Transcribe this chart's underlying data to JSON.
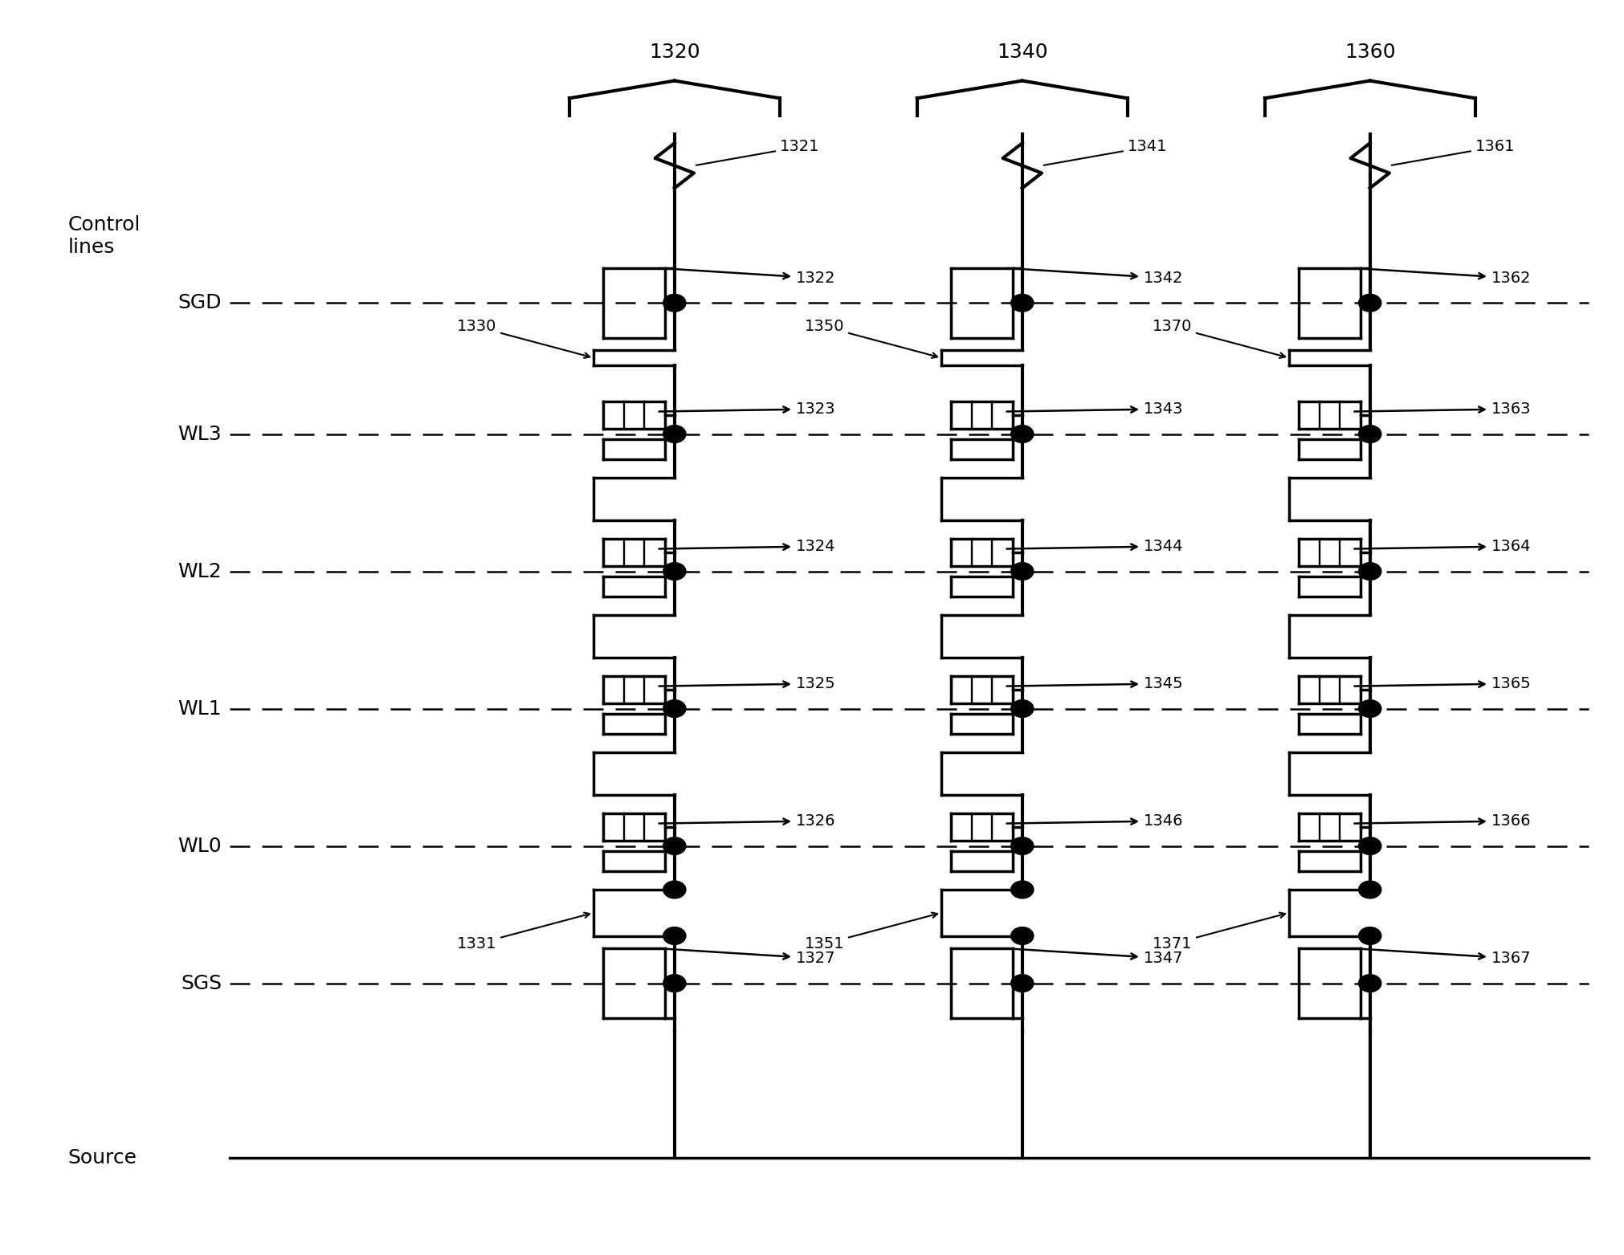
{
  "fig_width": 20.22,
  "fig_height": 15.63,
  "background_color": "#ffffff",
  "col_labels": [
    "1320",
    "1340",
    "1360"
  ],
  "col_wire_labels": [
    "1321",
    "1341",
    "1361"
  ],
  "col_gate_labels_base": [
    1322,
    1342,
    1362
  ],
  "boost_top_labels": [
    "1330",
    "1350",
    "1370"
  ],
  "boost_bot_labels": [
    "1331",
    "1351",
    "1371"
  ],
  "row_labels": [
    "SGD",
    "WL3",
    "WL2",
    "WL1",
    "WL0",
    "SGS"
  ],
  "left_label": "Control\nlines",
  "source_label": "Source",
  "lw_main": 3.0,
  "lw_gate": 2.5,
  "lw_dash": 1.8,
  "fs_large": 18,
  "fs_med": 15,
  "fs_small": 14
}
